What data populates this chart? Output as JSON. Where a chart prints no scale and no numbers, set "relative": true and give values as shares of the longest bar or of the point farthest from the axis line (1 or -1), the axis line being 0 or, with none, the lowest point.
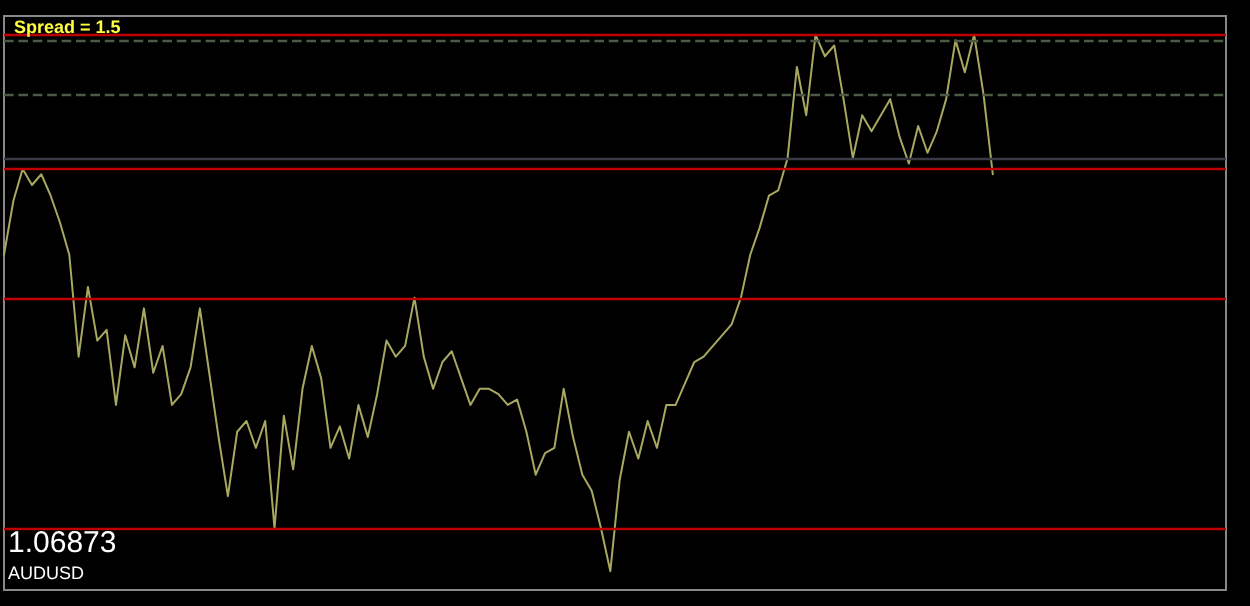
{
  "chart_data": {
    "type": "line",
    "relative": true,
    "title": "Spread = 1.5",
    "annotations": [
      "1.06873",
      "AUDUSD"
    ],
    "tick_labels": false,
    "grid": false,
    "line_style": "solid",
    "categories": [
      null,
      null,
      null,
      null,
      null,
      null,
      null,
      null,
      null,
      null,
      null,
      null,
      null,
      null,
      null,
      null,
      null,
      null,
      null,
      null,
      null,
      null,
      null,
      null,
      null,
      null,
      null,
      null,
      null,
      null,
      null,
      null,
      null,
      null,
      null,
      null,
      null,
      null,
      null,
      null,
      null,
      null,
      null,
      null,
      null,
      null,
      null,
      null,
      null,
      null,
      null,
      null,
      null,
      null,
      null,
      null,
      null,
      null,
      null,
      null,
      null,
      null,
      null,
      null,
      null,
      null,
      null,
      null,
      null,
      null,
      null,
      null,
      null,
      null,
      null,
      null,
      null,
      null,
      null,
      null,
      null,
      null,
      null,
      null,
      null,
      null,
      null,
      null,
      null,
      null,
      null,
      null,
      null,
      null,
      null,
      null,
      null,
      null,
      null,
      null,
      null,
      null,
      null,
      null,
      null,
      null,
      null,
      null,
      null,
      null,
      null,
      null,
      null,
      null,
      null,
      null,
      null,
      null,
      null,
      null,
      null,
      null,
      null,
      null,
      null,
      null,
      null,
      null,
      null,
      null,
      null,
      null
    ],
    "series": [
      {
        "color": "#a8a860",
        "values": [
          0.59,
          0.69,
          0.75,
          0.72,
          0.74,
          0.7,
          0.65,
          0.59,
          0.4,
          0.53,
          0.43,
          0.45,
          0.31,
          0.44,
          0.38,
          0.49,
          0.37,
          0.42,
          0.31,
          0.33,
          0.38,
          0.49,
          0.37,
          0.25,
          0.14,
          0.26,
          0.28,
          0.23,
          0.28,
          0.08,
          0.29,
          0.19,
          0.34,
          0.42,
          0.36,
          0.23,
          0.27,
          0.21,
          0.31,
          0.25,
          0.33,
          0.43,
          0.4,
          0.42,
          0.51,
          0.4,
          0.34,
          0.39,
          0.41,
          0.36,
          0.31,
          0.34,
          0.34,
          0.33,
          0.31,
          0.32,
          0.26,
          0.18,
          0.22,
          0.23,
          0.34,
          0.25,
          0.18,
          0.15,
          0.08,
          0,
          0.17,
          0.26,
          0.21,
          0.28,
          0.23,
          0.31,
          0.31,
          0.35,
          0.39,
          0.4,
          0.42,
          0.44,
          0.46,
          0.51,
          0.59,
          0.64,
          0.7,
          0.71,
          0.77,
          0.94,
          0.85,
          1,
          0.96,
          0.98,
          0.88,
          0.77,
          0.85,
          0.82,
          0.85,
          0.88,
          0.81,
          0.76,
          0.83,
          0.78,
          0.82,
          0.88,
          0.99,
          0.93,
          1,
          0.89,
          0.74,
          null,
          null,
          null,
          null,
          null,
          null,
          null,
          null,
          null,
          null,
          null,
          null,
          null,
          null,
          null,
          null,
          null,
          null,
          null,
          null,
          null,
          null,
          null,
          null,
          null
        ]
      }
    ],
    "ref_lines": [
      {
        "axis": "y",
        "value": 1.0,
        "color": "#c00000",
        "line_style": "solid"
      },
      {
        "axis": "y",
        "value": 0.75,
        "color": "#c00000",
        "line_style": "solid"
      },
      {
        "axis": "y",
        "value": 0.51,
        "color": "#c00000",
        "line_style": "solid"
      },
      {
        "axis": "y",
        "value": 0.08,
        "color": "#c00000",
        "line_style": "solid"
      },
      {
        "axis": "y",
        "value": 0.99,
        "color": "#4a5a44",
        "line_style": "dashed"
      },
      {
        "axis": "y",
        "value": 0.89,
        "color": "#4a5a44",
        "line_style": "dashed"
      },
      {
        "axis": "y",
        "value": 0.77,
        "color": "#3a3a46",
        "line_style": "solid"
      }
    ]
  }
}
